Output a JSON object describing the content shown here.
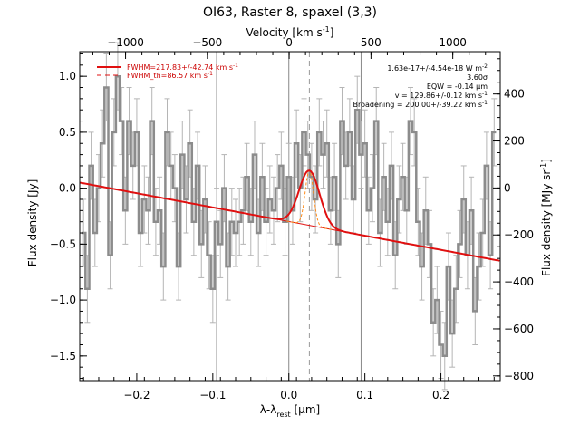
{
  "chart_data": {
    "type": "line",
    "title": "OI63, Raster 8, spaxel (3,3)",
    "xlabel": "λ-λrest [μm]",
    "xlabel_main": "λ-λ",
    "xlabel_sub": "rest",
    "xlabel_unit": " [μm]",
    "ylabel": "Flux density [Jy]",
    "top_xlabel": "Velocity [km s⁻¹]",
    "top_xlabel_main": "Velocity [km s",
    "top_xlabel_sup": "-1",
    "top_xlabel_end": "]",
    "right_ylabel": "Flux density [MJy sr⁻¹]",
    "right_ylabel_main": "Flux density [MJy sr",
    "right_ylabel_sup": "-1",
    "right_ylabel_end": "]",
    "xlim": [
      -0.275,
      0.278
    ],
    "ylim": [
      -1.72,
      1.22
    ],
    "top_xlim": [
      -1280,
      1290
    ],
    "right_ylim": [
      -820,
      580
    ],
    "x_ticks": [
      -0.2,
      -0.1,
      0.0,
      0.1,
      0.2
    ],
    "x_tick_labels": [
      "−0.2",
      "−0.1",
      "0.0",
      "0.1",
      "0.2"
    ],
    "y_ticks": [
      -1.5,
      -1.0,
      -0.5,
      0.0,
      0.5,
      1.0
    ],
    "y_tick_labels": [
      "−1.5",
      "−1.0",
      "−0.5",
      "0.0",
      "0.5",
      "1.0"
    ],
    "top_ticks": [
      -1000,
      -500,
      0,
      500,
      1000
    ],
    "top_tick_labels": [
      "−1000",
      "−500",
      "0",
      "500",
      "1000"
    ],
    "right_ticks": [
      -800,
      -600,
      -400,
      -200,
      0,
      200,
      400
    ],
    "right_tick_labels": [
      "−800",
      "−600",
      "−400",
      "−200",
      "0",
      "200",
      "400"
    ],
    "vlines_gray": [
      -0.095,
      0.0,
      0.095
    ],
    "vline_dashed": 0.027,
    "grid": false,
    "legend_position": "top-left",
    "legend": [
      {
        "label": "FWHM=217.83+/-42.74 km s",
        "sup": "-1",
        "style": "solid"
      },
      {
        "label": "FWHM_th=86.57 km s",
        "sup": "-1",
        "style": "dashed"
      }
    ],
    "annotations": [
      {
        "text": "1.63e-17+/-4.54e-18 W m",
        "sup": "-2"
      },
      {
        "text": "3.60σ",
        "sup": ""
      },
      {
        "text": "EQW = -0.14 μm",
        "sup": ""
      },
      {
        "text": "v = 129.86+/-0.12 km s",
        "sup": "-1"
      },
      {
        "text": "Broadening = 200.00+/-39.22 km s",
        "sup": "-1"
      }
    ],
    "fit": {
      "baseline": [
        {
          "x": -0.275,
          "y": 0.05
        },
        {
          "x": 0.278,
          "y": -0.65
        }
      ],
      "gaussian": {
        "center": 0.027,
        "amplitude": 0.49,
        "sigma": 0.0135
      },
      "thermal_sigma": 0.0054
    },
    "series": [
      {
        "style": "steps",
        "x": [
          -0.27,
          -0.265,
          -0.26,
          -0.255,
          -0.25,
          -0.245,
          -0.24,
          -0.235,
          -0.23,
          -0.225,
          -0.22,
          -0.215,
          -0.21,
          -0.205,
          -0.2,
          -0.195,
          -0.19,
          -0.185,
          -0.18,
          -0.175,
          -0.17,
          -0.165,
          -0.16,
          -0.155,
          -0.15,
          -0.145,
          -0.14,
          -0.135,
          -0.13,
          -0.125,
          -0.12,
          -0.115,
          -0.11,
          -0.105,
          -0.1,
          -0.095,
          -0.09,
          -0.085,
          -0.08,
          -0.075,
          -0.07,
          -0.065,
          -0.06,
          -0.055,
          -0.05,
          -0.045,
          -0.04,
          -0.035,
          -0.03,
          -0.025,
          -0.02,
          -0.015,
          -0.01,
          -0.005,
          0.0,
          0.005,
          0.01,
          0.015,
          0.02,
          0.025,
          0.03,
          0.035,
          0.04,
          0.045,
          0.05,
          0.055,
          0.06,
          0.065,
          0.07,
          0.075,
          0.08,
          0.085,
          0.09,
          0.095,
          0.1,
          0.105,
          0.11,
          0.115,
          0.12,
          0.125,
          0.13,
          0.135,
          0.14,
          0.145,
          0.15,
          0.155,
          0.16,
          0.165,
          0.17,
          0.175,
          0.18,
          0.185,
          0.19,
          0.195,
          0.2,
          0.205,
          0.21,
          0.215,
          0.22,
          0.225,
          0.23,
          0.235,
          0.24,
          0.245,
          0.25,
          0.255,
          0.26,
          0.265,
          0.27
        ],
        "y": [
          -0.4,
          -0.9,
          0.2,
          -0.4,
          0.0,
          0.4,
          0.9,
          -0.6,
          0.5,
          1.0,
          0.6,
          -0.2,
          0.6,
          0.2,
          0.5,
          -0.4,
          -0.1,
          -0.2,
          0.6,
          -0.3,
          -0.2,
          -0.7,
          0.5,
          0.2,
          0.0,
          -0.7,
          0.3,
          -0.1,
          0.4,
          -0.3,
          0.2,
          -0.5,
          -0.1,
          -0.6,
          -0.9,
          -0.3,
          -0.5,
          0.0,
          -0.7,
          -0.3,
          -0.4,
          -0.3,
          -0.2,
          0.1,
          -0.3,
          0.3,
          -0.4,
          0.1,
          -0.3,
          -0.1,
          -0.2,
          0.0,
          0.2,
          -0.3,
          0.1,
          -0.2,
          0.4,
          0.0,
          0.5,
          0.3,
          0.1,
          -0.1,
          0.5,
          0.3,
          0.4,
          -0.2,
          0.1,
          -0.5,
          0.6,
          0.2,
          0.5,
          -0.1,
          0.7,
          0.3,
          0.4,
          -0.2,
          0.0,
          0.6,
          -0.4,
          0.1,
          -0.3,
          0.2,
          -0.6,
          -0.1,
          0.1,
          -0.2,
          0.6,
          0.5,
          -0.3,
          -0.7,
          -0.2,
          -0.5,
          -1.2,
          -1.0,
          -1.4,
          -1.5,
          -0.7,
          -1.3,
          -0.9,
          -0.5,
          -0.1,
          -0.6,
          -0.2,
          -1.1,
          -0.7,
          -0.4,
          0.2,
          -0.6,
          0.5
        ],
        "err": 0.3
      }
    ]
  }
}
